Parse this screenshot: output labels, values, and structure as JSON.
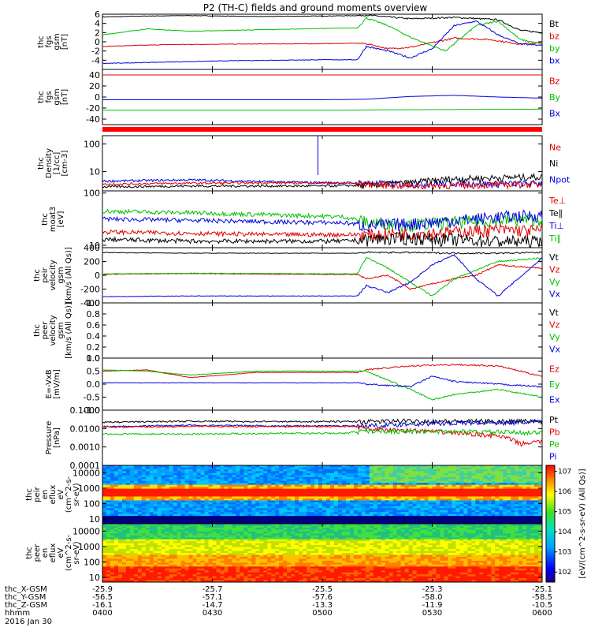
{
  "chart_data": {
    "type": "line",
    "title": "P2 (TH-C) fields and ground moments overview",
    "panels": [
      {
        "id": "fgs",
        "ylabel": [
          "thc",
          "fgs",
          "gsm",
          "[nT]"
        ],
        "yticks": [
          "6",
          "4",
          "2",
          "0",
          "-2",
          "-4"
        ],
        "ylim": [
          -6,
          6
        ],
        "legend": [
          {
            "label": "Bt",
            "color": "#000000"
          },
          {
            "label": "bz",
            "color": "#e00000"
          },
          {
            "label": "by",
            "color": "#00c000"
          },
          {
            "label": "bx",
            "color": "#0000e0"
          }
        ],
        "series": [
          {
            "name": "Bt",
            "x": [
              0,
              10,
              20,
              35,
              50,
              58,
              60,
              70,
              80,
              90,
              95,
              100
            ],
            "y": [
              5.4,
              5.6,
              5.7,
              5.5,
              5.6,
              5.7,
              5.8,
              5.0,
              5.3,
              4.8,
              2.5,
              2.0
            ]
          },
          {
            "name": "bz",
            "x": [
              0,
              15,
              30,
              50,
              58,
              60,
              65,
              70,
              80,
              88,
              95,
              100
            ],
            "y": [
              -1.0,
              -0.6,
              -0.5,
              -0.4,
              -0.3,
              -0.4,
              -1.5,
              -1.2,
              0.8,
              0.5,
              -0.5,
              -0.2
            ]
          },
          {
            "name": "by",
            "x": [
              0,
              10,
              20,
              35,
              50,
              58,
              60,
              65,
              70,
              78,
              85,
              90,
              95,
              100
            ],
            "y": [
              1.5,
              2.8,
              2.3,
              2.6,
              2.9,
              3.0,
              5.2,
              3.5,
              1.0,
              -2.0,
              3.5,
              4.5,
              0.5,
              -0.5
            ]
          },
          {
            "name": "bx",
            "x": [
              0,
              15,
              30,
              50,
              58,
              60,
              65,
              70,
              75,
              80,
              85,
              90,
              95,
              100
            ],
            "y": [
              -4.7,
              -4.4,
              -4.1,
              -3.9,
              -3.9,
              -1.0,
              -2.0,
              -3.5,
              -1.5,
              3.5,
              4.5,
              1.5,
              -0.5,
              -0.8
            ]
          }
        ]
      },
      {
        "id": "fgs_smooth",
        "ylabel": [
          "thc",
          "fgs",
          "gsm",
          "[nT]"
        ],
        "yticks": [
          "40",
          "20",
          "0",
          "-20",
          "-40"
        ],
        "ylim": [
          -50,
          50
        ],
        "legend": [
          {
            "label": "Bz",
            "color": "#e00000"
          },
          {
            "label": "By",
            "color": "#00c000"
          },
          {
            "label": "Bx",
            "color": "#0000e0"
          }
        ],
        "series": [
          {
            "name": "Bz",
            "x": [
              0,
              50,
              100
            ],
            "y": [
              40,
              40,
              40
            ]
          },
          {
            "name": "By",
            "x": [
              0,
              50,
              70,
              100
            ],
            "y": [
              -24,
              -24,
              -23,
              -22
            ]
          },
          {
            "name": "Bx",
            "x": [
              0,
              50,
              60,
              70,
              80,
              90,
              100
            ],
            "y": [
              -5,
              -5,
              -4,
              1,
              3,
              0,
              -2
            ]
          }
        ]
      },
      {
        "id": "density",
        "ylabel": [
          "thc",
          "Density",
          "[1/cc]",
          "[cm-3]"
        ],
        "yticks": [
          "100",
          "10"
        ],
        "scale": "log",
        "ylim": [
          2,
          200
        ],
        "legend": [
          {
            "label": "Ne",
            "color": "#e00000"
          },
          {
            "label": "Ni",
            "color": "#000000"
          },
          {
            "label": "Npot",
            "color": "#0000e0"
          }
        ],
        "series": [
          {
            "name": "Npot",
            "x": [
              0,
              20,
              40,
              48,
              50,
              60,
              70,
              80,
              90,
              100
            ],
            "y": [
              4.5,
              5,
              4.2,
              4.0,
              4.0,
              3.8,
              3.5,
              3.8,
              3.6,
              3.8
            ]
          },
          {
            "name": "Ni",
            "x": [
              0,
              20,
              40,
              50,
              60,
              70,
              80,
              90,
              100
            ],
            "y": [
              2.8,
              3.0,
              3.0,
              3.0,
              3.2,
              4.0,
              5.5,
              6.0,
              6.5
            ]
          },
          {
            "name": "Ne",
            "x": [
              0,
              20,
              40,
              50,
              60,
              70,
              80,
              90,
              100
            ],
            "y": [
              3.5,
              3.8,
              3.9,
              3.9,
              3.6,
              3.0,
              3.2,
              3.4,
              3.5
            ]
          }
        ]
      },
      {
        "id": "temperature",
        "ylabel": [
          "thc",
          "moat3",
          "[eV]"
        ],
        "yticks": [
          "100",
          "10"
        ],
        "scale": "log",
        "ylim": [
          9,
          110
        ],
        "legend": [
          {
            "label": "Te⊥",
            "color": "#e00000"
          },
          {
            "label": "Te∥",
            "color": "#000000"
          },
          {
            "label": "Ti⊥",
            "color": "#0000e0"
          },
          {
            "label": "Ti∥",
            "color": "#00c000"
          }
        ],
        "series": [
          {
            "name": "Ti∥",
            "x": [
              0,
              20,
              40,
              55,
              60,
              70,
              80,
              90,
              100
            ],
            "y": [
              45,
              42,
              38,
              35,
              28,
              25,
              28,
              30,
              32
            ]
          },
          {
            "name": "Ti⊥",
            "x": [
              0,
              20,
              40,
              55,
              60,
              70,
              80,
              90,
              100
            ],
            "y": [
              32,
              30,
              28,
              27,
              24,
              26,
              30,
              35,
              38
            ]
          },
          {
            "name": "Te⊥",
            "x": [
              0,
              20,
              40,
              55,
              60,
              70,
              80,
              90,
              100
            ],
            "y": [
              18,
              17,
              16,
              16,
              16,
              17,
              18,
              20,
              19
            ]
          },
          {
            "name": "Te∥",
            "x": [
              0,
              20,
              40,
              55,
              60,
              70,
              80,
              90,
              100
            ],
            "y": [
              13,
              12,
              12,
              12,
              13,
              14,
              13,
              12,
              12
            ]
          }
        ]
      },
      {
        "id": "peir_velocity",
        "ylabel": [
          "thc",
          "peir",
          "velocity",
          "gsm",
          "[km/s (All Qs)]"
        ],
        "yticks": [
          "400",
          "200",
          "0",
          "-200",
          "-400"
        ],
        "ylim": [
          -400,
          400
        ],
        "legend": [
          {
            "label": "Vt",
            "color": "#000000"
          },
          {
            "label": "Vz",
            "color": "#e00000"
          },
          {
            "label": "Vy",
            "color": "#00c000"
          },
          {
            "label": "Vx",
            "color": "#0000e0"
          }
        ],
        "series": [
          {
            "name": "Vt",
            "x": [
              0,
              20,
              40,
              58,
              60,
              70,
              80,
              90,
              100
            ],
            "y": [
              330,
              320,
              320,
              320,
              330,
              330,
              320,
              320,
              330
            ]
          },
          {
            "name": "Vz",
            "x": [
              0,
              20,
              40,
              58,
              60,
              65,
              70,
              80,
              85,
              90,
              100
            ],
            "y": [
              15,
              25,
              15,
              10,
              -50,
              0,
              -200,
              -50,
              0,
              150,
              100
            ]
          },
          {
            "name": "Vy",
            "x": [
              0,
              20,
              40,
              58,
              60,
              65,
              70,
              75,
              80,
              90,
              100
            ],
            "y": [
              20,
              30,
              25,
              20,
              260,
              100,
              -100,
              -300,
              -50,
              200,
              250
            ]
          },
          {
            "name": "Vx",
            "x": [
              0,
              20,
              40,
              58,
              60,
              65,
              70,
              75,
              80,
              85,
              90,
              100
            ],
            "y": [
              -310,
              -300,
              -300,
              -300,
              -150,
              -250,
              -100,
              150,
              300,
              -50,
              -300,
              250
            ]
          }
        ]
      },
      {
        "id": "peer_velocity",
        "ylabel": [
          "thc",
          "peer",
          "velocity",
          "gsm",
          "[km/s (All Qs)]"
        ],
        "yticks": [
          "1.0",
          "0.8",
          "0.6",
          "0.4",
          "0.2",
          "0.0"
        ],
        "ylim": [
          0,
          1
        ],
        "legend": [
          {
            "label": "Vt",
            "color": "#000000"
          },
          {
            "label": "Vz",
            "color": "#e00000"
          },
          {
            "label": "Vy",
            "color": "#00c000"
          },
          {
            "label": "Vx",
            "color": "#0000e0"
          }
        ],
        "series": []
      },
      {
        "id": "efield",
        "ylabel": [
          "E=-VxB",
          "[mV/m]"
        ],
        "yticks": [
          "1.0",
          "0.5",
          "0.0",
          "-0.5",
          "-1.0"
        ],
        "ylim": [
          -1,
          1
        ],
        "legend": [
          {
            "label": "Ez",
            "color": "#e00000"
          },
          {
            "label": "Ey",
            "color": "#00c000"
          },
          {
            "label": "Ex",
            "color": "#0000e0"
          }
        ],
        "series": [
          {
            "name": "Ez",
            "x": [
              0,
              10,
              20,
              35,
              50,
              58,
              60,
              70,
              80,
              90,
              100
            ],
            "y": [
              0.5,
              0.55,
              0.25,
              0.45,
              0.45,
              0.45,
              0.55,
              0.7,
              0.75,
              0.7,
              0.3
            ]
          },
          {
            "name": "Ey",
            "x": [
              0,
              10,
              20,
              35,
              50,
              58,
              60,
              70,
              75,
              80,
              90,
              100
            ],
            "y": [
              0.55,
              0.5,
              0.35,
              0.5,
              0.5,
              0.5,
              0.5,
              -0.2,
              -0.6,
              -0.4,
              -0.2,
              -0.5
            ]
          },
          {
            "name": "Ex",
            "x": [
              0,
              20,
              40,
              58,
              60,
              70,
              75,
              80,
              90,
              100
            ],
            "y": [
              0.05,
              0.05,
              0.05,
              0.05,
              0.0,
              -0.1,
              0.3,
              0.1,
              0.0,
              -0.1
            ]
          }
        ]
      },
      {
        "id": "pressure",
        "ylabel": [
          "Pressure",
          "[nPa]"
        ],
        "yticks": [
          "0.1000",
          "0.0100",
          "0.0010",
          "0.0001"
        ],
        "scale": "log",
        "ylim": [
          0.0001,
          0.1
        ],
        "legend": [
          {
            "label": "Pt",
            "color": "#000000"
          },
          {
            "label": "Pb",
            "color": "#e00000"
          },
          {
            "label": "Pe",
            "color": "#00c000"
          },
          {
            "label": "Pi",
            "color": "#0000e0"
          }
        ],
        "series": [
          {
            "name": "Pt",
            "x": [
              0,
              20,
              40,
              60,
              70,
              80,
              90,
              100
            ],
            "y": [
              0.022,
              0.025,
              0.024,
              0.024,
              0.026,
              0.025,
              0.025,
              0.026
            ]
          },
          {
            "name": "Pi",
            "x": [
              0,
              20,
              40,
              60,
              70,
              80,
              90,
              100
            ],
            "y": [
              0.013,
              0.015,
              0.014,
              0.014,
              0.018,
              0.02,
              0.021,
              0.022
            ]
          },
          {
            "name": "Pb",
            "x": [
              0,
              20,
              40,
              58,
              60,
              70,
              80,
              90,
              95,
              100
            ],
            "y": [
              0.012,
              0.013,
              0.013,
              0.013,
              0.009,
              0.008,
              0.006,
              0.004,
              0.0015,
              0.002
            ]
          },
          {
            "name": "Pe",
            "x": [
              0,
              20,
              40,
              55,
              60,
              80,
              100
            ],
            "y": [
              0.005,
              0.005,
              0.0055,
              0.0055,
              0.0075,
              0.007,
              0.006
            ]
          }
        ]
      },
      {
        "id": "peir_eflux",
        "type": "heatmap",
        "ylabel": [
          "thc",
          "peir",
          "en",
          "eflux",
          "eV",
          "(cm^2-s-",
          "sr-eV)"
        ],
        "yticks": [
          "10000",
          "1000",
          "100",
          "10"
        ],
        "scale": "log",
        "ylim": [
          5,
          30000
        ]
      },
      {
        "id": "peer_eflux",
        "type": "heatmap",
        "ylabel": [
          "thc",
          "peer",
          "en",
          "eflux",
          "eV",
          "(cm^2-s-",
          "sr-eV)"
        ],
        "yticks": [
          "10000",
          "1000",
          "100",
          "10"
        ],
        "scale": "log",
        "ylim": [
          5,
          30000
        ]
      }
    ],
    "colorbar": {
      "label": "[eV/(cm^2-s-sr-eV) (All Qs)]",
      "ticks": [
        "10^7",
        "10^6",
        "10^5",
        "10^4",
        "10^3",
        "10^2"
      ]
    },
    "xaxis": {
      "ticks": [
        "0400",
        "0430",
        "0500",
        "0530",
        "0600"
      ],
      "rows": [
        {
          "label": "thc_X-GSM",
          "values": [
            "-25.9",
            "-25.7",
            "-25.5",
            "-25.3",
            "-25.1"
          ]
        },
        {
          "label": "thc_Y-GSM",
          "values": [
            "-56.5",
            "-57.1",
            "-57.6",
            "-58.0",
            "-58.5"
          ]
        },
        {
          "label": "thc_Z-GSM",
          "values": [
            "-16.1",
            "-14.7",
            "-13.3",
            "-11.9",
            "-10.5"
          ]
        },
        {
          "label": "hhmm",
          "values": [
            "0400",
            "0430",
            "0500",
            "0530",
            "0600"
          ]
        }
      ],
      "date": "2016 Jan 30"
    }
  }
}
